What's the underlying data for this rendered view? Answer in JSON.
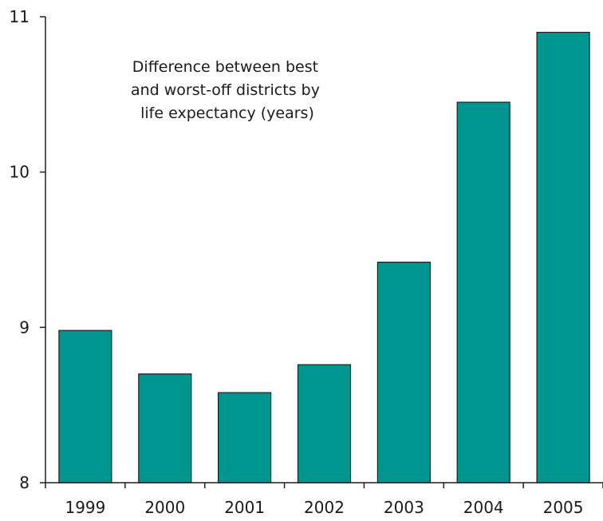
{
  "chart_data": {
    "type": "bar",
    "title": "Difference between best and worst-off districts by life expectancy (years)",
    "title_lines": [
      "Difference between best",
      "and worst-off districts by",
      "life expectancy (years)"
    ],
    "xlabel": "",
    "ylabel": "",
    "categories": [
      "1999",
      "2000",
      "2001",
      "2002",
      "2003",
      "2004",
      "2005"
    ],
    "values": [
      8.98,
      8.7,
      8.58,
      8.76,
      9.42,
      10.45,
      10.9
    ],
    "ylim": [
      8,
      11
    ],
    "yticks": [
      "8",
      "9",
      "10",
      "11"
    ],
    "grid": false,
    "legend": "none",
    "colors": {
      "bar_fill": "#00968f",
      "bar_stroke": "#1f1f1f",
      "axis": "#1f1f1f"
    }
  }
}
